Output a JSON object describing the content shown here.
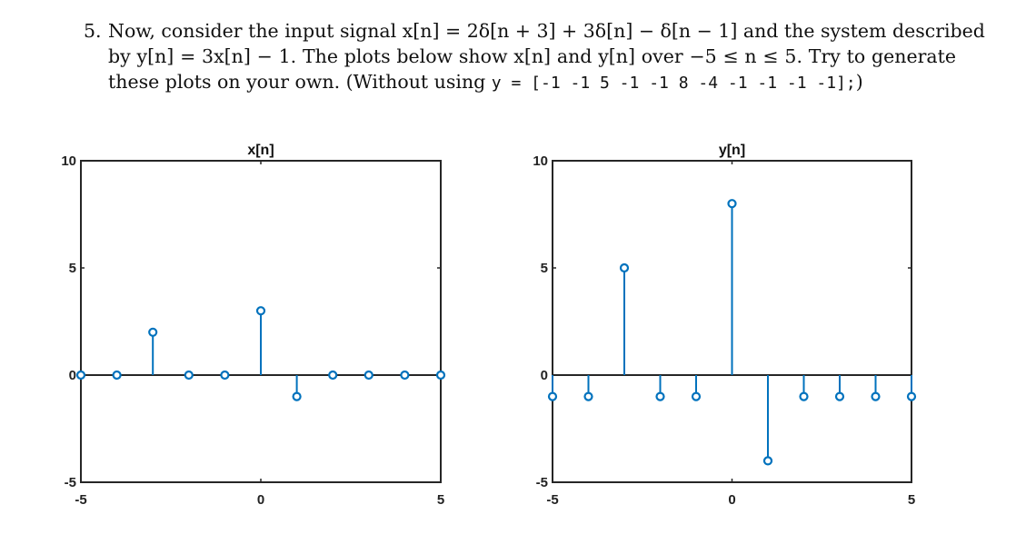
{
  "problem": {
    "number": "5.",
    "line1": "Now, consider the input signal x[n] = 2δ[n + 3] + 3δ[n] − δ[n − 1] and the system described",
    "line2": "by y[n] = 3x[n] − 1. The plots below show x[n] and y[n] over −5 ≤ n ≤ 5. Try to generate",
    "line3_text": "these plots on your own. (Without using ",
    "line3_code": "y = [-1 -1 5 -1 -1 8 -4 -1 -1 -1 -1];",
    "line3_end": ")"
  },
  "colors": {
    "stem": "#0072BD",
    "axis": "#262626"
  },
  "chart_data": [
    {
      "type": "stem",
      "title": "x[n]",
      "x": [
        -5,
        -4,
        -3,
        -2,
        -1,
        0,
        1,
        2,
        3,
        4,
        5
      ],
      "values": [
        0,
        0,
        2,
        0,
        0,
        3,
        -1,
        0,
        0,
        0,
        0
      ],
      "xlim": [
        -5,
        5
      ],
      "ylim": [
        -5,
        10
      ],
      "xticks": [
        "-5",
        "0",
        "5"
      ],
      "yticks": [
        "-5",
        "0",
        "5",
        "10"
      ],
      "xlabel": "",
      "ylabel": "",
      "grid": false
    },
    {
      "type": "stem",
      "title": "y[n]",
      "x": [
        -5,
        -4,
        -3,
        -2,
        -1,
        0,
        1,
        2,
        3,
        4,
        5
      ],
      "values": [
        -1,
        -1,
        5,
        -1,
        -1,
        8,
        -4,
        -1,
        -1,
        -1,
        -1
      ],
      "xlim": [
        -5,
        5
      ],
      "ylim": [
        -5,
        10
      ],
      "xticks": [
        "-5",
        "0",
        "5"
      ],
      "yticks": [
        "-5",
        "0",
        "5",
        "10"
      ],
      "xlabel": "",
      "ylabel": "",
      "grid": false
    }
  ]
}
